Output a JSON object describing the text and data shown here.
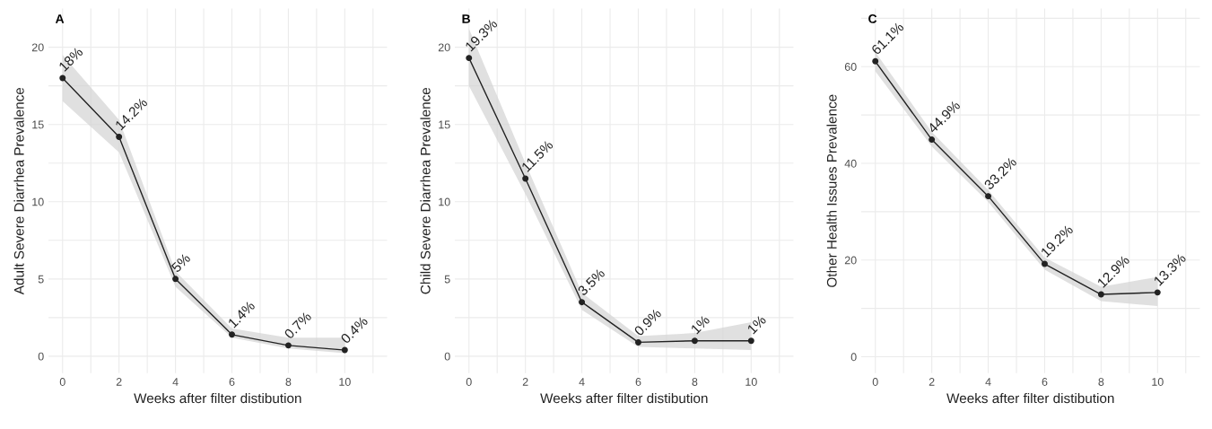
{
  "chart_data": [
    {
      "type": "line",
      "title": "A",
      "xlabel": "Weeks after filter distibution",
      "ylabel": "Adult Severe Diarrhea Prevalence",
      "x": [
        0,
        2,
        4,
        6,
        8,
        10
      ],
      "series": [
        {
          "color": "#222222",
          "values": [
            18,
            14.2,
            5,
            1.4,
            0.7,
            0.4
          ],
          "lower": [
            16.5,
            13.2,
            4.5,
            1.2,
            0.5,
            0.2
          ],
          "upper": [
            19.5,
            15.3,
            5.5,
            1.8,
            1.2,
            1.2
          ],
          "value_labels": [
            "18%",
            "14.2%",
            "5%",
            "1.4%",
            "0.7%",
            "0.4%"
          ]
        }
      ],
      "marker": "circle",
      "xlim": [
        -0.5,
        11.5
      ],
      "ylim": [
        -1.1,
        22.5
      ],
      "xticks": [
        0,
        {
          "value": 1,
          "label": null
        },
        2,
        {
          "value": 3,
          "label": null
        },
        4,
        {
          "value": 5,
          "label": null
        },
        6,
        {
          "value": 7,
          "label": null
        },
        8,
        {
          "value": 9,
          "label": null
        },
        10,
        {
          "value": 11,
          "label": null
        }
      ],
      "yticks": [
        0,
        {
          "value": 2.5,
          "label": null
        },
        5,
        {
          "value": 7.5,
          "label": null
        },
        10,
        {
          "value": 12.5,
          "label": null
        },
        15,
        {
          "value": 17.5,
          "label": null
        },
        20
      ],
      "grid": true
    },
    {
      "type": "line",
      "title": "B",
      "xlabel": "Weeks after filter distibution",
      "ylabel": "Child Severe Diarrhea Prevalence",
      "x": [
        0,
        2,
        4,
        6,
        8,
        10
      ],
      "series": [
        {
          "color": "#222222",
          "values": [
            19.3,
            11.5,
            3.5,
            0.9,
            1,
            1
          ],
          "lower": [
            17.5,
            10.5,
            3.0,
            0.6,
            0.5,
            0.4
          ],
          "upper": [
            21.2,
            12.5,
            4.1,
            1.3,
            1.5,
            2.2
          ],
          "value_labels": [
            "19.3%",
            "11.5%",
            "3.5%",
            "0.9%",
            "1%",
            "1%"
          ]
        }
      ],
      "marker": "circle",
      "xlim": [
        -0.5,
        11.5
      ],
      "ylim": [
        -1.1,
        22.5
      ],
      "xticks": [
        0,
        {
          "value": 1,
          "label": null
        },
        2,
        {
          "value": 3,
          "label": null
        },
        4,
        {
          "value": 5,
          "label": null
        },
        6,
        {
          "value": 7,
          "label": null
        },
        8,
        {
          "value": 9,
          "label": null
        },
        10,
        {
          "value": 11,
          "label": null
        }
      ],
      "yticks": [
        0,
        {
          "value": 2.5,
          "label": null
        },
        5,
        {
          "value": 7.5,
          "label": null
        },
        10,
        {
          "value": 12.5,
          "label": null
        },
        15,
        {
          "value": 17.5,
          "label": null
        },
        20
      ],
      "grid": true
    },
    {
      "type": "line",
      "title": "C",
      "xlabel": "Weeks after filter distibution",
      "ylabel": "Other Health Issues Prevalence",
      "x": [
        0,
        2,
        4,
        6,
        8,
        10
      ],
      "series": [
        {
          "color": "#222222",
          "values": [
            61.1,
            44.9,
            33.2,
            19.2,
            12.9,
            13.3
          ],
          "lower": [
            59,
            43.5,
            32,
            18,
            11.5,
            10.5
          ],
          "upper": [
            63,
            46.5,
            34.5,
            20.5,
            14.5,
            16.5
          ],
          "value_labels": [
            "61.1%",
            "44.9%",
            "33.2%",
            "19.2%",
            "12.9%",
            "13.3%"
          ]
        }
      ],
      "marker": "circle",
      "xlim": [
        -0.5,
        11.5
      ],
      "ylim": [
        -3.4,
        72
      ],
      "xticks": [
        0,
        {
          "value": 1,
          "label": null
        },
        2,
        {
          "value": 3,
          "label": null
        },
        4,
        {
          "value": 5,
          "label": null
        },
        6,
        {
          "value": 7,
          "label": null
        },
        8,
        {
          "value": 9,
          "label": null
        },
        10,
        {
          "value": 11,
          "label": null
        }
      ],
      "yticks": [
        0,
        {
          "value": 10,
          "label": null
        },
        20,
        {
          "value": 30,
          "label": null
        },
        40,
        {
          "value": 50,
          "label": null
        },
        60,
        {
          "value": 70,
          "label": null
        }
      ],
      "grid": true
    }
  ]
}
